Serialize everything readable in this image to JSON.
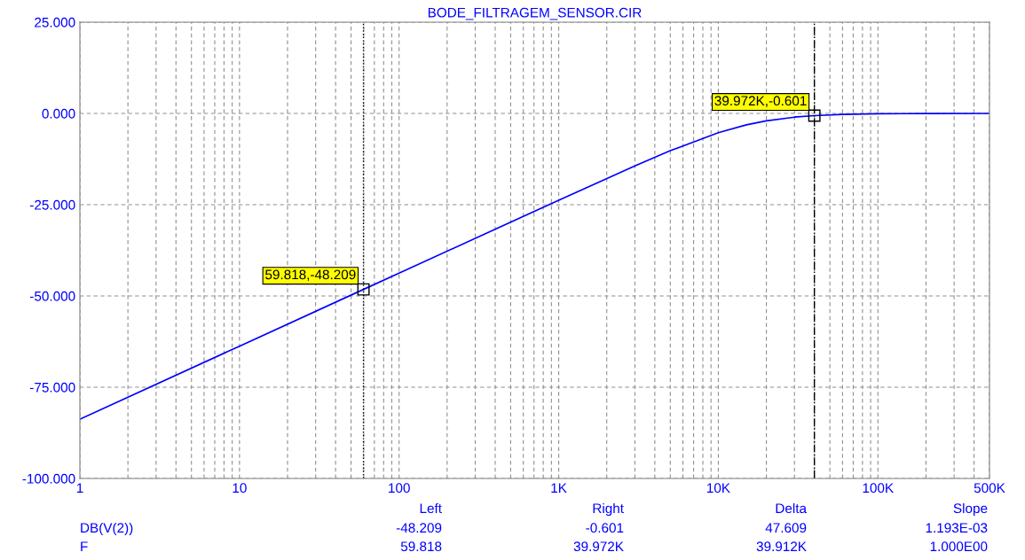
{
  "chart_data": {
    "type": "line",
    "title": "BODE_FILTRAGEM_SENSOR.CIR",
    "log": "x",
    "series": [
      {
        "color": "#0000ff",
        "x": [
          1,
          10,
          59.818,
          100,
          1000,
          3000,
          5000,
          10000,
          15000,
          20000,
          30000,
          39972,
          60000,
          100000,
          200000,
          500000
        ],
        "values": [
          -83.75,
          -63.75,
          -48.209,
          -43.75,
          -23.77,
          -14.37,
          -10.21,
          -5.28,
          -3.13,
          -2.02,
          -1.02,
          -0.601,
          -0.28,
          -0.1,
          -0.03,
          0.0
        ]
      }
    ],
    "xlim": [
      1,
      500000
    ],
    "xticks": [
      1,
      10,
      100,
      {
        "value": 1000,
        "label": "1K"
      },
      {
        "value": 10000,
        "label": "10K"
      },
      {
        "value": 100000,
        "label": "100K"
      },
      {
        "value": 500000,
        "label": "500K"
      }
    ],
    "ylim": [
      -100,
      25
    ],
    "yticks": [
      {
        "value": -100,
        "label": "-100.000"
      },
      {
        "value": -75,
        "label": "-75.000"
      },
      {
        "value": -50,
        "label": "-50.000"
      },
      {
        "value": -25,
        "label": "-25.000"
      },
      {
        "value": 0,
        "label": "0.000"
      },
      {
        "value": 25,
        "label": "25.000"
      }
    ],
    "grid": true,
    "ref_lines": [
      {
        "axis": "x",
        "value": 59.818,
        "line_style": "dotted",
        "color": "#000000"
      },
      {
        "axis": "x",
        "value": 39972,
        "line_style": "dashed",
        "color": "#000000"
      }
    ],
    "annotations": [
      {
        "text": "59.818,-48.209",
        "x": 59.818,
        "y": -48.209
      },
      {
        "text": "39.972K,-0.601",
        "x": 39972,
        "y": -0.601
      },
      "Left",
      "Right",
      "Delta",
      "Slope",
      "DB(V(2))",
      "-48.209",
      "-0.601",
      "47.609",
      "1.193E-03",
      "F",
      "59.818",
      "39.972K",
      "39.912K",
      "1.000E00"
    ]
  }
}
